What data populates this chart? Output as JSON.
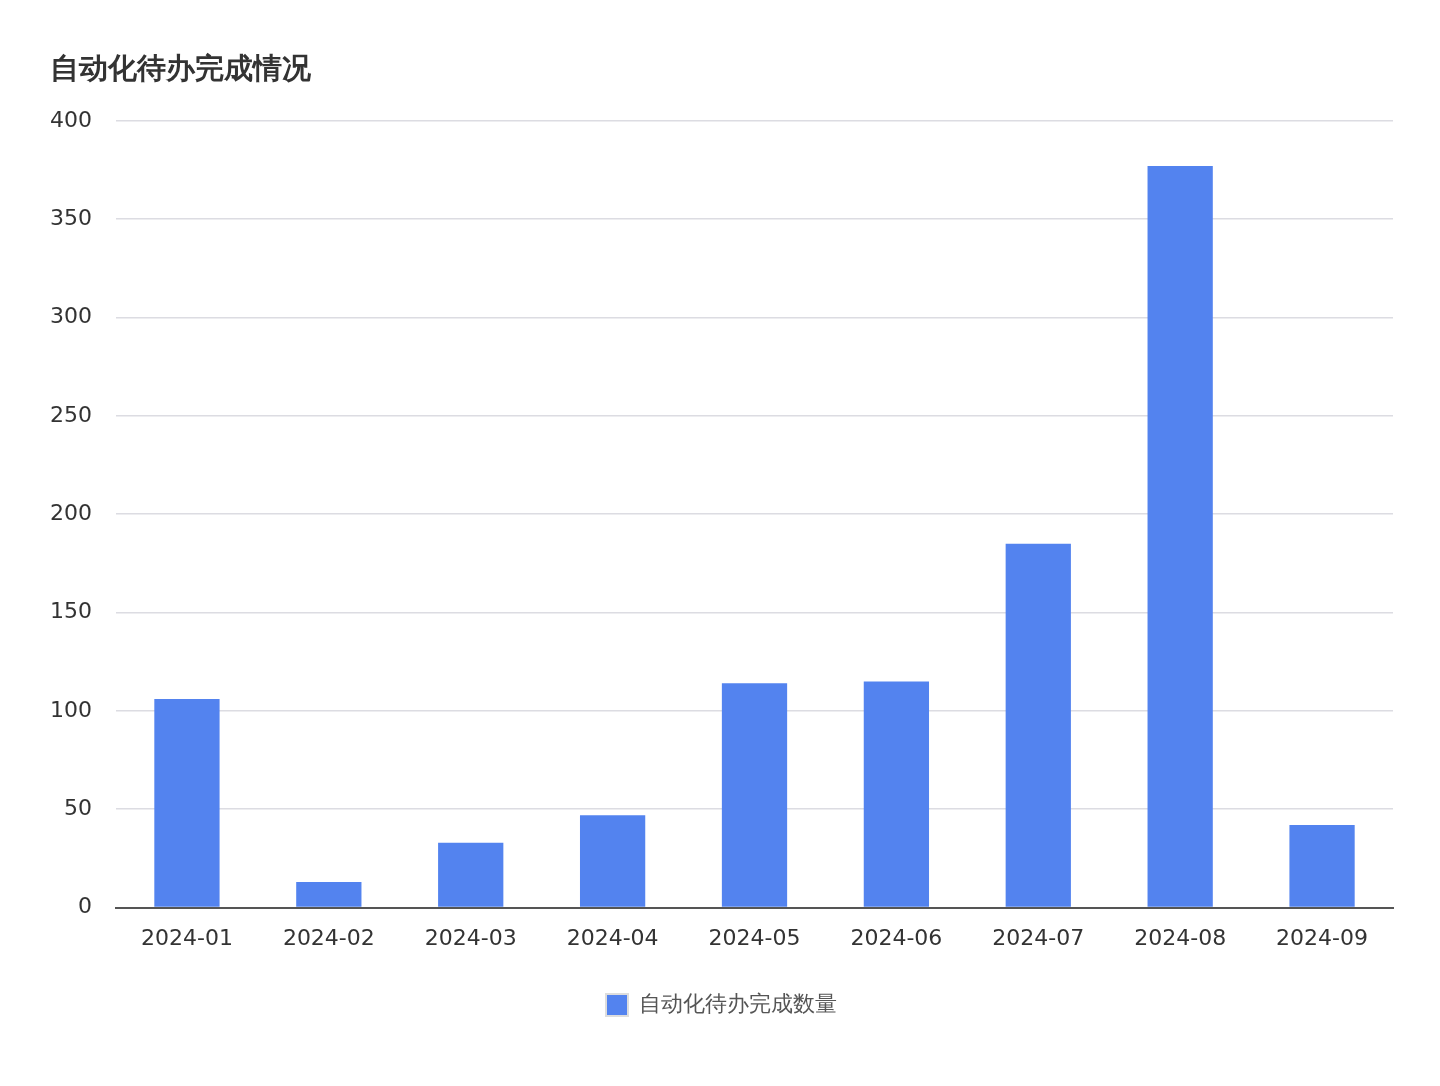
{
  "chart_data": {
    "type": "bar",
    "title": "自动化待办完成情况",
    "categories": [
      "2024-01",
      "2024-02",
      "2024-03",
      "2024-04",
      "2024-05",
      "2024-06",
      "2024-07",
      "2024-08",
      "2024-09"
    ],
    "series": [
      {
        "name": "自动化待办完成数量",
        "color": "#5383ef",
        "values": [
          106,
          13,
          33,
          47,
          114,
          115,
          185,
          377,
          42
        ]
      }
    ],
    "ylim": [
      0,
      400
    ],
    "yticks": [
      0,
      50,
      100,
      150,
      200,
      250,
      300,
      350,
      400
    ],
    "grid": "y",
    "legend": "bottom"
  }
}
